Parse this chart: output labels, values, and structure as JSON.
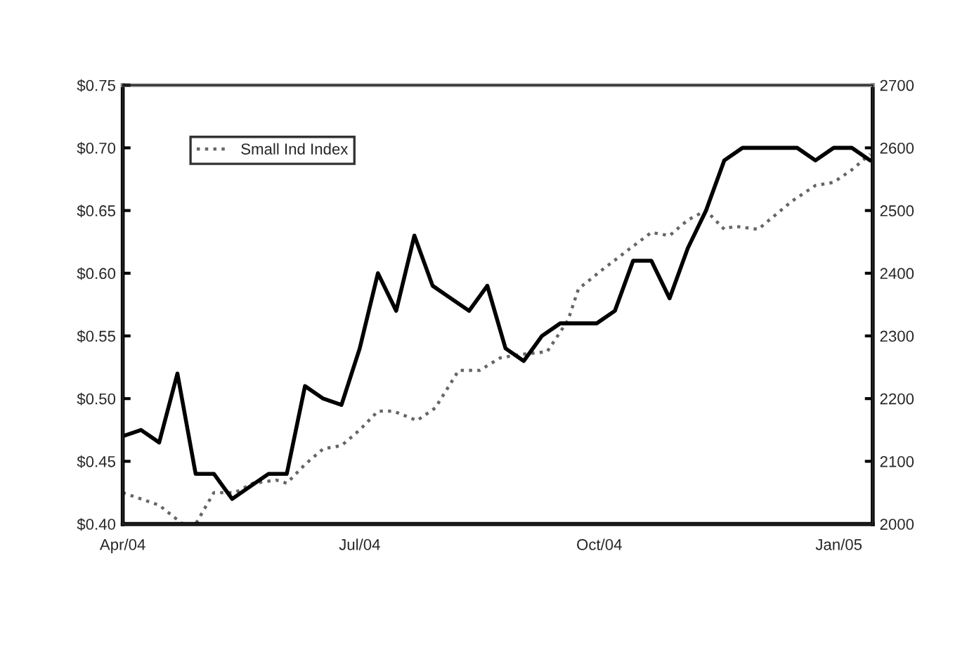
{
  "chart_data": {
    "type": "line",
    "xlim": [
      "2004-04-01",
      "2005-01-14"
    ],
    "xticks": [
      {
        "value": "2004-04-01",
        "label": "Apr/04"
      },
      {
        "value": "2004-07-01",
        "label": "Jul/04"
      },
      {
        "value": "2004-10-01",
        "label": "Oct/04"
      },
      {
        "value": "2005-01-01",
        "label": "Jan/05"
      }
    ],
    "ylim": [
      0.4,
      0.75
    ],
    "yticks": [
      {
        "value": 0.4,
        "label": "$0.40"
      },
      {
        "value": 0.45,
        "label": "$0.45"
      },
      {
        "value": 0.5,
        "label": "$0.50"
      },
      {
        "value": 0.55,
        "label": "$0.55"
      },
      {
        "value": 0.6,
        "label": "$0.60"
      },
      {
        "value": 0.65,
        "label": "$0.65"
      },
      {
        "value": 0.7,
        "label": "$0.70"
      },
      {
        "value": 0.75,
        "label": "$0.75"
      }
    ],
    "y2lim": [
      2000,
      2700
    ],
    "y2ticks": [
      2000,
      2100,
      2200,
      2300,
      2400,
      2500,
      2600,
      2700
    ],
    "legend": "top left",
    "grid": false,
    "series": [
      {
        "color": "#000000",
        "line_style": "solid",
        "x": [
          "2004-04-01",
          "2004-04-08",
          "2004-04-15",
          "2004-04-22",
          "2004-04-29",
          "2004-05-06",
          "2004-05-13",
          "2004-05-20",
          "2004-05-27",
          "2004-06-03",
          "2004-06-10",
          "2004-06-17",
          "2004-06-24",
          "2004-07-01",
          "2004-07-08",
          "2004-07-15",
          "2004-07-22",
          "2004-07-29",
          "2004-08-05",
          "2004-08-12",
          "2004-08-19",
          "2004-08-26",
          "2004-09-02",
          "2004-09-09",
          "2004-09-16",
          "2004-09-23",
          "2004-09-30",
          "2004-10-07",
          "2004-10-14",
          "2004-10-21",
          "2004-10-28",
          "2004-11-04",
          "2004-11-11",
          "2004-11-18",
          "2004-11-25",
          "2004-12-02",
          "2004-12-09",
          "2004-12-16",
          "2004-12-23",
          "2004-12-30",
          "2005-01-06",
          "2005-01-13"
        ],
        "values": [
          0.47,
          0.475,
          0.465,
          0.52,
          0.44,
          0.44,
          0.42,
          0.43,
          0.44,
          0.44,
          0.51,
          0.5,
          0.495,
          0.54,
          0.6,
          0.57,
          0.63,
          0.59,
          0.58,
          0.57,
          0.59,
          0.54,
          0.53,
          0.55,
          0.56,
          0.56,
          0.56,
          0.57,
          0.61,
          0.61,
          0.58,
          0.62,
          0.65,
          0.69,
          0.7,
          0.7,
          0.7,
          0.7,
          0.69,
          0.7,
          0.7,
          0.69
        ]
      },
      {
        "name": "Small Ind Index",
        "color": "#666666",
        "line_style": "dotted",
        "axis": "y2",
        "x": [
          "2004-04-01",
          "2004-04-15",
          "2004-04-24",
          "2004-04-29",
          "2004-05-06",
          "2004-05-14",
          "2004-05-21",
          "2004-05-30",
          "2004-06-03",
          "2004-06-10",
          "2004-06-17",
          "2004-06-24",
          "2004-07-01",
          "2004-07-08",
          "2004-07-14",
          "2004-07-23",
          "2004-07-30",
          "2004-08-08",
          "2004-08-16",
          "2004-08-24",
          "2004-08-31",
          "2004-09-11",
          "2004-09-19",
          "2004-09-23",
          "2004-10-02",
          "2004-10-13",
          "2004-10-21",
          "2004-10-28",
          "2004-11-04",
          "2004-11-11",
          "2004-11-18",
          "2004-11-22",
          "2004-12-01",
          "2004-12-14",
          "2004-12-23",
          "2004-12-30",
          "2005-01-06",
          "2005-01-13"
        ],
        "values": [
          2050,
          2030,
          2000,
          2000,
          2050,
          2050,
          2065,
          2070,
          2065,
          2095,
          2120,
          2125,
          2150,
          2180,
          2180,
          2165,
          2185,
          2245,
          2245,
          2265,
          2270,
          2275,
          2325,
          2375,
          2405,
          2440,
          2465,
          2460,
          2485,
          2500,
          2470,
          2475,
          2470,
          2515,
          2540,
          2545,
          2565,
          2590
        ]
      }
    ]
  }
}
